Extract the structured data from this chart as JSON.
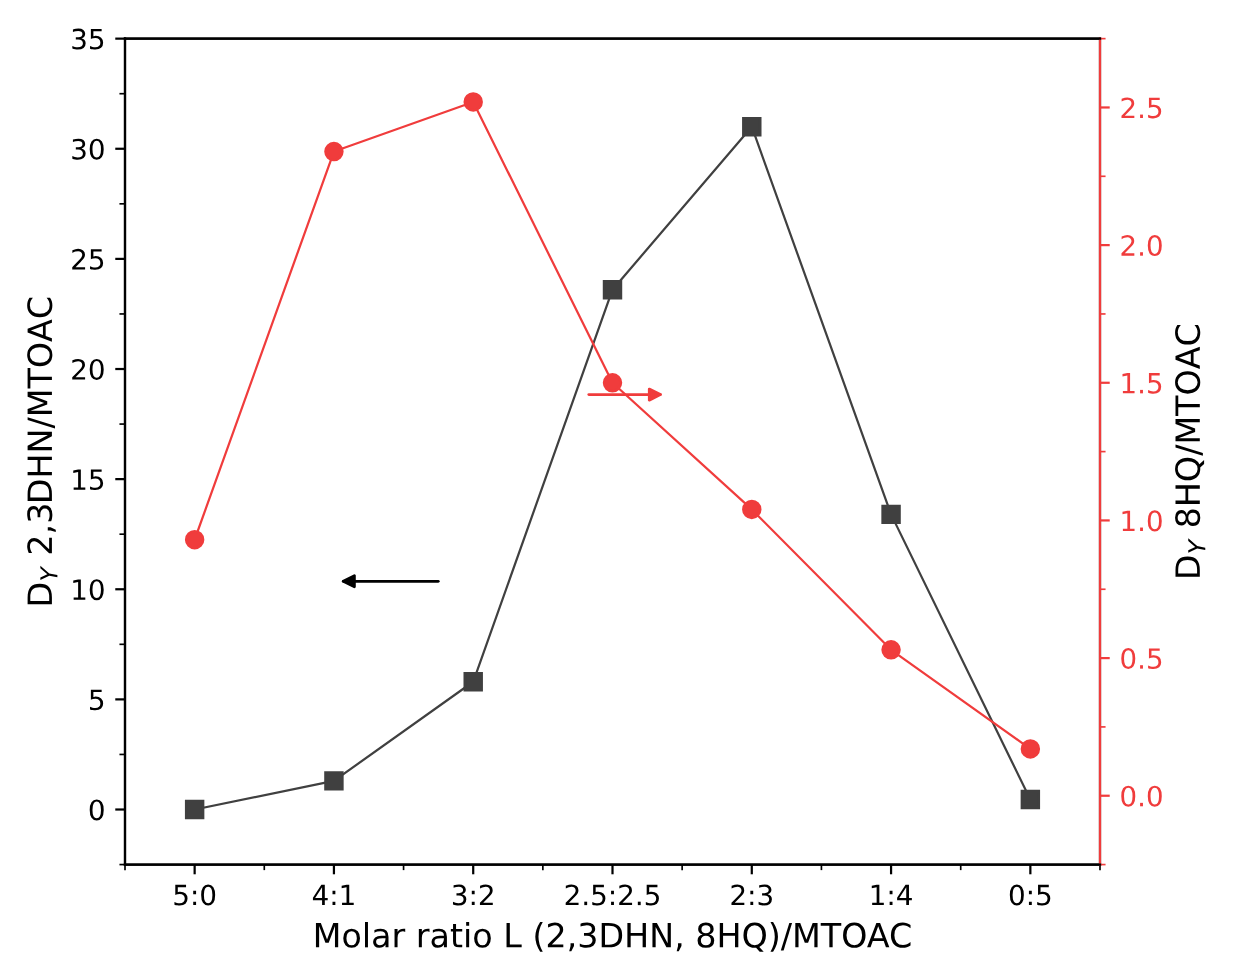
{
  "chart_data": {
    "type": "line",
    "xlabel": "Molar ratio L (2,3DHN, 8HQ)/MTOAC",
    "ylabel": "D$_{Y}$ 2,3DHN/MTOAC",
    "y2label": "D$_{Y}$ 8HQ/MTOAC",
    "categories": [
      "5:0",
      "4:1",
      "3:2",
      "2.5:2.5",
      "2:3",
      "1:4",
      "0:5"
    ],
    "series": [
      {
        "color": "#404040",
        "marker": "square",
        "values": [
          0.0,
          1.3,
          5.8,
          23.6,
          31.0,
          13.4,
          0.45
        ]
      },
      {
        "color": "#f03c3c",
        "marker": "circle",
        "axis": "y2",
        "values": [
          0.93,
          2.34,
          2.52,
          1.5,
          1.04,
          0.53,
          0.17
        ]
      }
    ],
    "ylim": [
      -2.5,
      35
    ],
    "yticks": [
      0,
      5,
      10,
      15,
      20,
      25,
      30,
      35
    ],
    "y2lim": [
      -0.25,
      2.75
    ],
    "y2ticks": [
      {
        "value": 0,
        "label": "0.0"
      },
      0.5,
      {
        "value": 1,
        "label": "1.0"
      },
      1.5,
      {
        "value": 2,
        "label": "2.0"
      },
      2.5
    ],
    "grid": false,
    "legend": false,
    "line_style": "solid"
  }
}
